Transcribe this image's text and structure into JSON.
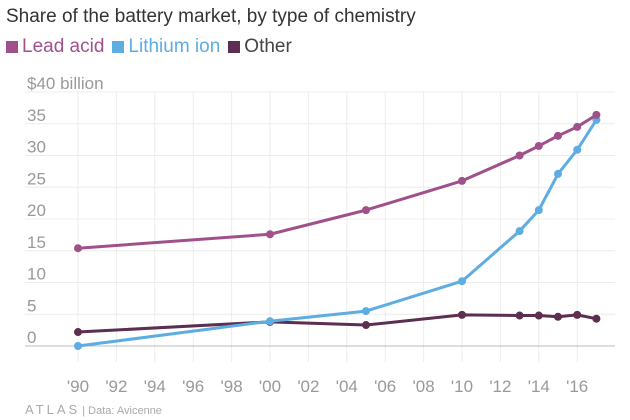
{
  "chart_data": {
    "type": "line",
    "title": "Share of the battery market, by type of chemistry",
    "x": [
      1990,
      2000,
      2005,
      2010,
      2013,
      2014,
      2015,
      2016,
      2017
    ],
    "series": [
      {
        "name": "Lead acid",
        "color": "#a0508a",
        "values": [
          15.4,
          17.6,
          21.4,
          26.0,
          30.0,
          31.5,
          33.1,
          34.5,
          36.4
        ]
      },
      {
        "name": "Lithium ion",
        "color": "#5dade2",
        "values": [
          0,
          3.9,
          5.5,
          10.2,
          18.1,
          21.4,
          27.1,
          30.9,
          35.6
        ]
      },
      {
        "name": "Other",
        "color": "#5c2e4f",
        "values": [
          2.2,
          3.8,
          3.3,
          4.9,
          4.8,
          4.8,
          4.6,
          4.9,
          4.3
        ]
      }
    ],
    "ylim": [
      0,
      40
    ],
    "xlim": [
      1990,
      2017
    ],
    "y_ticks": [
      "0",
      "5",
      "10",
      "15",
      "20",
      "25",
      "30",
      "35",
      "$40 billion"
    ],
    "y_tick_values": [
      0,
      5,
      10,
      15,
      20,
      25,
      30,
      35,
      40
    ],
    "x_ticks": [
      "'90",
      "'92",
      "'94",
      "'96",
      "'98",
      "'00",
      "'02",
      "'04",
      "'06",
      "'08",
      "'10",
      "'12",
      "'14",
      "'16"
    ],
    "x_tick_values": [
      1990,
      1992,
      1994,
      1996,
      1998,
      2000,
      2002,
      2004,
      2006,
      2008,
      2010,
      2012,
      2014,
      2016
    ],
    "grid": true,
    "legend_position": "top-left"
  },
  "footer": {
    "logo": "ATLAS",
    "source": "| Data: Avicenne"
  }
}
